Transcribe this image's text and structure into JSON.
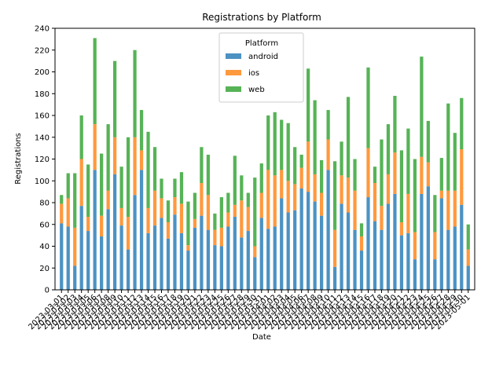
{
  "chart_data": {
    "type": "bar",
    "stacked": true,
    "title": "Registrations by Platform",
    "xlabel": "Date",
    "ylabel": "Registrations",
    "ylim": [
      0,
      240
    ],
    "yticks": [
      0,
      20,
      40,
      60,
      80,
      100,
      120,
      140,
      160,
      180,
      200,
      220,
      240
    ],
    "grid": false,
    "legend": {
      "title": "Platform",
      "placement": "top-center"
    },
    "categories": [
      "2023-03-01",
      "2023-03-02",
      "2023-03-03",
      "2023-03-04",
      "2023-03-05",
      "2023-03-06",
      "2023-03-07",
      "2023-03-08",
      "2023-03-09",
      "2023-03-10",
      "2023-03-11",
      "2023-03-12",
      "2023-03-13",
      "2023-03-14",
      "2023-03-15",
      "2023-03-16",
      "2023-03-17",
      "2023-03-18",
      "2023-03-19",
      "2023-03-20",
      "2023-03-21",
      "2023-03-22",
      "2023-03-23",
      "2023-03-24",
      "2023-03-25",
      "2023-03-26",
      "2023-03-27",
      "2023-03-28",
      "2023-03-29",
      "2023-03-30",
      "2023-03-31",
      "2023-04-01",
      "2023-04-02",
      "2023-04-03",
      "2023-04-04",
      "2023-04-05",
      "2023-04-06",
      "2023-04-07",
      "2023-04-08",
      "2023-04-09",
      "2023-04-10",
      "2023-04-11",
      "2023-04-12",
      "2023-04-13",
      "2023-04-14",
      "2023-04-15",
      "2023-04-16",
      "2023-04-17",
      "2023-04-18",
      "2023-04-19",
      "2023-04-20",
      "2023-04-21",
      "2023-04-22",
      "2023-04-23",
      "2023-04-24",
      "2023-04-25",
      "2023-04-26",
      "2023-04-27",
      "2023-04-28",
      "2023-04-29",
      "2023-04-30",
      "2023-05-01"
    ],
    "xtick_labels": [
      "2023-03-01",
      "2023-03-02",
      "2023-03-03",
      "2023-03-04",
      "2023-03-05",
      "2023-03-06",
      "2023-03-07",
      "2023-03-08",
      "2023-03-09",
      "2023-03-10",
      "2023-03-11",
      "2023-03-12",
      "2023-03-13",
      "2023-03-14",
      "2023-03-15",
      "2023-03-16",
      "2023-03-17",
      "2023-03-18",
      "2023-03-19",
      "2023-03-20",
      "2023-03-21",
      "2023-03-22",
      "2023-03-23",
      "2023-03-24",
      "2023-03-25",
      "2023-03-26",
      "2023-03-27",
      "2023-03-28",
      "2023-03-29",
      "2023-03-30",
      "2023-03-31",
      "2023-04-01",
      "2023-04-02",
      "2023-04-03",
      "2023-04-04",
      "2023-04-05",
      "2023-04-06",
      "2023-04-07",
      "2023-04-08",
      "2023-04-09",
      "2023-04-10",
      "2023-04-11",
      "2023-04-12",
      "2023-04-13",
      "2023-04-14",
      "2023-04-15",
      "2023-04-16",
      "2023-04-17",
      "2023-04-18",
      "2023-04-19",
      "2023-04-20",
      "2023-04-21",
      "2023-04-22",
      "2023-04-23",
      "2023-04-24",
      "2023-04-25",
      "2023-04-26",
      "2023-04-27",
      "2023-04-28",
      "2023-04-29",
      "2023-04-30",
      "2023-05-01"
    ],
    "series": [
      {
        "name": "android",
        "color": "#1f77b4",
        "values": [
          61,
          58,
          22,
          77,
          54,
          110,
          49,
          74,
          106,
          59,
          37,
          87,
          110,
          52,
          59,
          66,
          47,
          69,
          52,
          36,
          57,
          68,
          55,
          41,
          40,
          58,
          67,
          48,
          54,
          30,
          66,
          56,
          58,
          84,
          71,
          73,
          93,
          90,
          81,
          68,
          110,
          21,
          79,
          71,
          55,
          36,
          85,
          63,
          55,
          79,
          88,
          50,
          52,
          28,
          88,
          95,
          28,
          84,
          55,
          58,
          78,
          22
        ]
      },
      {
        "name": "ios",
        "color": "#ff7f0e",
        "values": [
          18,
          26,
          35,
          43,
          13,
          42,
          19,
          17,
          34,
          16,
          30,
          53,
          18,
          23,
          32,
          18,
          15,
          16,
          27,
          5,
          8,
          30,
          32,
          14,
          17,
          13,
          11,
          34,
          22,
          10,
          23,
          54,
          47,
          26,
          29,
          24,
          19,
          46,
          25,
          21,
          28,
          34,
          26,
          32,
          36,
          13,
          45,
          35,
          22,
          27,
          38,
          12,
          36,
          25,
          34,
          22,
          25,
          7,
          36,
          33,
          51,
          15
        ]
      },
      {
        "name": "web",
        "color": "#2ca02c",
        "values": [
          8,
          23,
          50,
          40,
          48,
          79,
          57,
          61,
          70,
          38,
          73,
          80,
          37,
          70,
          40,
          18,
          20,
          17,
          29,
          40,
          24,
          33,
          37,
          15,
          28,
          18,
          45,
          23,
          13,
          63,
          27,
          50,
          58,
          46,
          53,
          34,
          12,
          67,
          68,
          30,
          27,
          63,
          31,
          74,
          29,
          12,
          74,
          15,
          61,
          46,
          52,
          66,
          60,
          67,
          92,
          38,
          34,
          30,
          80,
          53,
          47,
          23
        ]
      }
    ]
  }
}
